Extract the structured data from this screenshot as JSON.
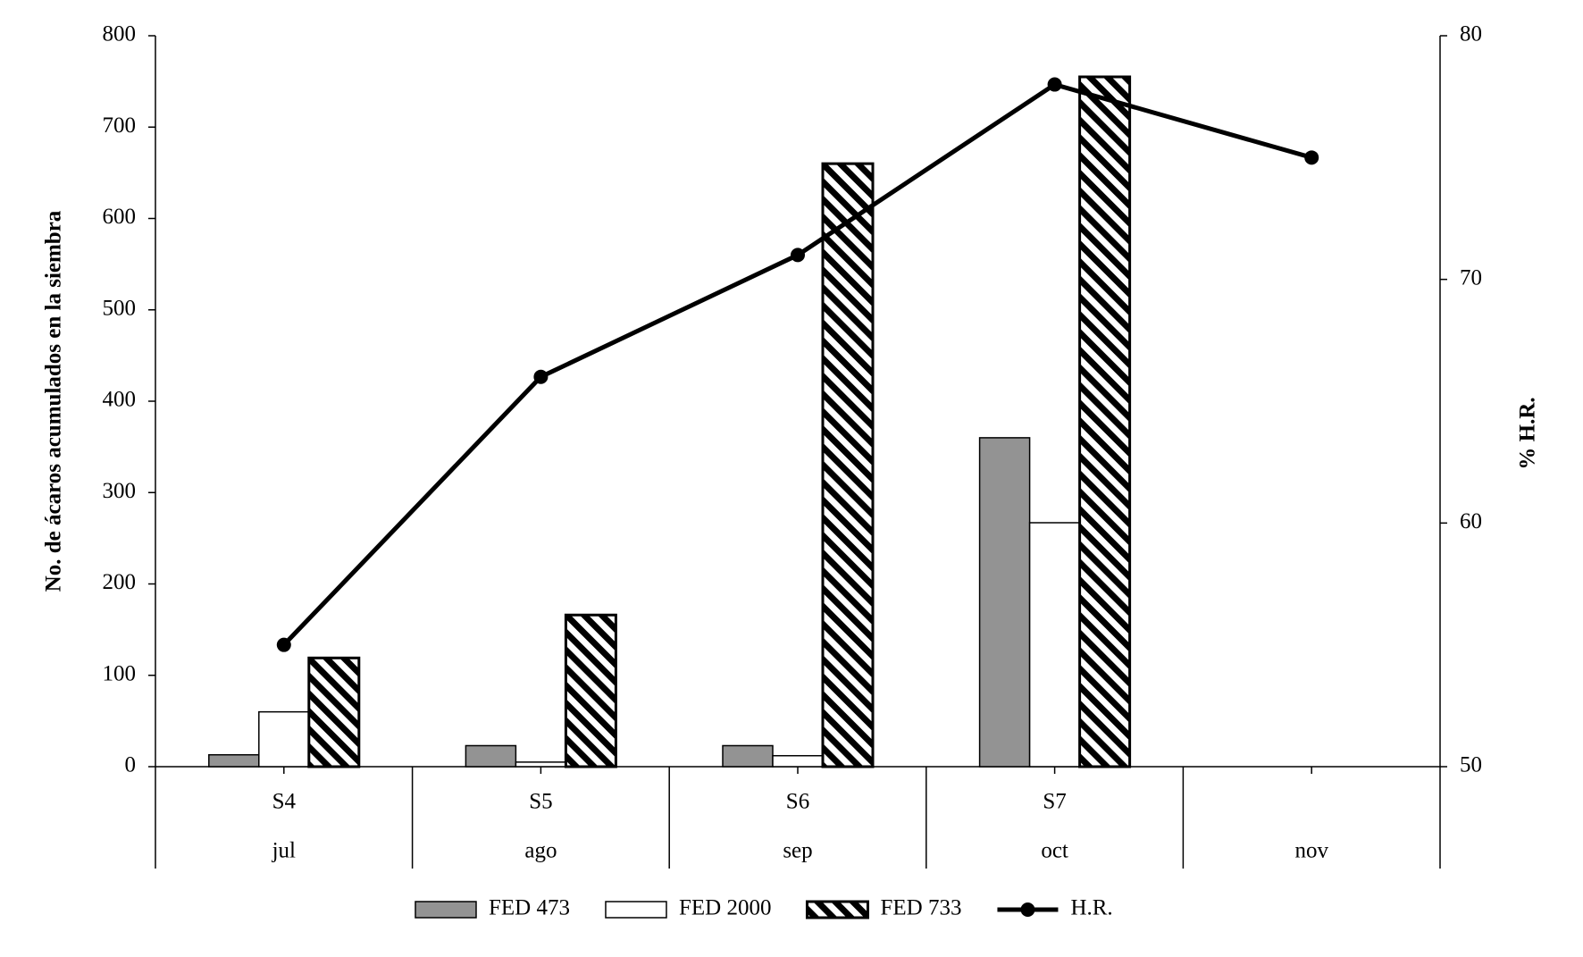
{
  "chart_data": {
    "type": "bar",
    "y_label": "No. de ácaros acumulados en la siembra",
    "y2_label": "% H.R.",
    "categories": [
      "S4",
      "S5",
      "S6",
      "S7",
      null
    ],
    "category_groups": [
      "jul",
      "ago",
      "sep",
      "oct",
      "nov"
    ],
    "series": [
      {
        "name": "FED 473",
        "type": "bar",
        "color": "#939393",
        "values": [
          13,
          23,
          23,
          360,
          null
        ]
      },
      {
        "name": "FED 2000",
        "type": "bar",
        "color": "#ffffff",
        "values": [
          60,
          5,
          12,
          267,
          null
        ]
      },
      {
        "name": "FED 733",
        "type": "bar",
        "color": "#000000",
        "hatch": true,
        "values": [
          119,
          166,
          660,
          755,
          null
        ]
      },
      {
        "name": "H.R.",
        "type": "line",
        "axis": "y2",
        "color": "#000000",
        "values": [
          55,
          66,
          71,
          78,
          75
        ]
      }
    ],
    "ylim": [
      0,
      800
    ],
    "yticks": [
      0,
      100,
      200,
      300,
      400,
      500,
      600,
      700,
      800
    ],
    "y2lim": [
      50,
      80
    ],
    "y2ticks": [
      50,
      60,
      70,
      80
    ],
    "legend": "bottom"
  }
}
